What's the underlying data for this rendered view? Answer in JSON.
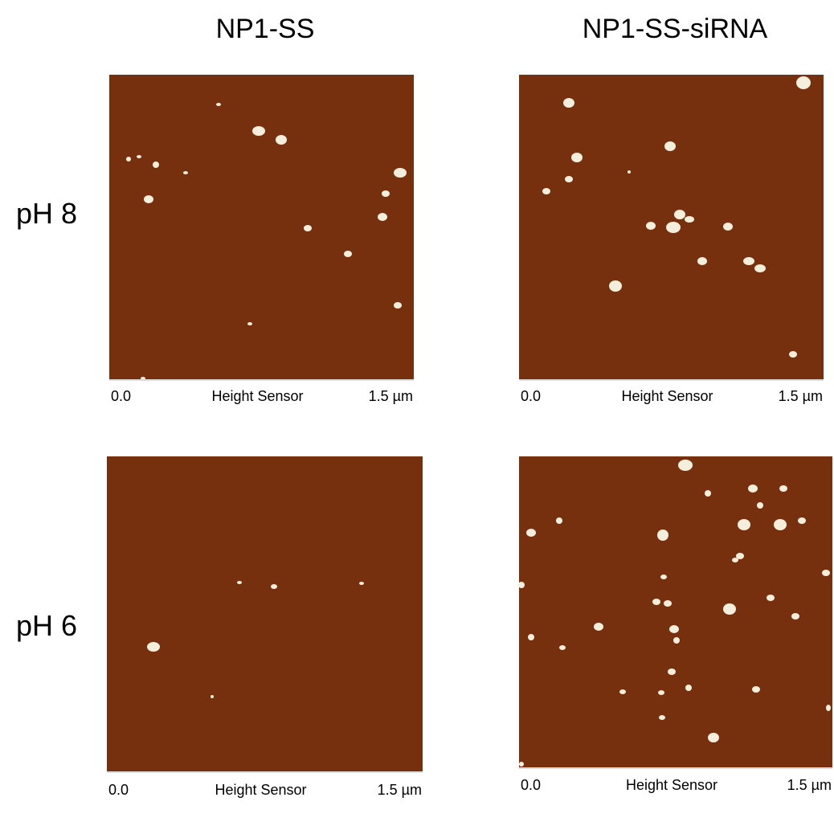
{
  "columns": [
    "NP1-SS",
    "NP1-SS-siRNA"
  ],
  "rows": [
    "pH 8",
    "pH 6"
  ],
  "panels": [
    {
      "scale_start": "0.0",
      "scale_label": "Height Sensor",
      "scale_end": "1.5 µm"
    },
    {
      "scale_start": "0.0",
      "scale_label": "Height Sensor",
      "scale_end": "1.5 µm"
    },
    {
      "scale_start": "0.0",
      "scale_label": "Height Sensor",
      "scale_end": "1.5 µm"
    },
    {
      "scale_start": "0.0",
      "scale_label": "Height Sensor",
      "scale_end": "1.5 µm"
    }
  ]
}
